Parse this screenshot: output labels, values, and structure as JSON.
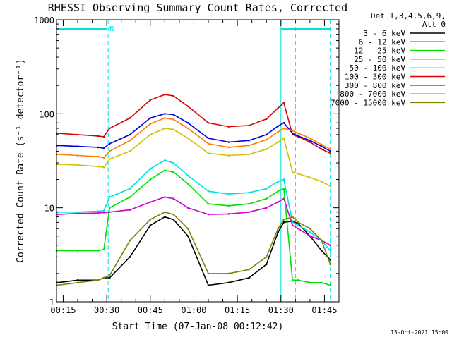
{
  "chart_data": {
    "type": "line",
    "title": "RHESSI Observing Summary Count Rates, Corrected",
    "xlabel": "Start Time (07-Jan-08 00:12:42)",
    "ylabel": "Corrected Count Rate (s⁻¹ detector⁻¹)",
    "yscale": "log",
    "ylim": [
      1,
      1000
    ],
    "xlim_minutes": [
      12.7,
      110
    ],
    "x_tick_labels": [
      "00:15",
      "00:30",
      "00:45",
      "01:00",
      "01:15",
      "01:30",
      "01:45"
    ],
    "x_tick_minutes": [
      15,
      30,
      45,
      60,
      75,
      90,
      105
    ],
    "y_tick_labels": [
      "1",
      "10",
      "100",
      "1000"
    ],
    "y_tick_values": [
      1,
      10,
      100,
      1000
    ],
    "legend_header": [
      "Det 1,3,4,5,6,9,",
      "Att 0"
    ],
    "legend_placement": "right",
    "footer_date": "13-Oct-2021 15:00",
    "night_marker_label": "N",
    "annotations": {
      "night_line_1": {
        "x_minutes": [
          13,
          30
        ]
      },
      "night_line_2": {
        "x_minutes": [
          90,
          107
        ]
      },
      "dashed_markers_minutes": [
        30.5,
        90,
        95,
        107
      ]
    },
    "sample_minutes": [
      13,
      20,
      27,
      29,
      31,
      38,
      45,
      50,
      53,
      58,
      65,
      72,
      79,
      85,
      89,
      91,
      94,
      96,
      100,
      104,
      107
    ],
    "series": [
      {
        "name": "3 - 6 keV",
        "color": "#000000",
        "values": [
          1.6,
          1.7,
          1.7,
          1.8,
          1.8,
          3.0,
          6.5,
          8.0,
          7.5,
          5.0,
          1.5,
          1.6,
          1.8,
          2.5,
          5.5,
          7.0,
          7.2,
          6.8,
          5.0,
          3.5,
          2.8
        ]
      },
      {
        "name": "6 - 12 keV",
        "color": "#d000d0",
        "values": [
          8.5,
          8.7,
          8.8,
          8.9,
          9.0,
          9.5,
          11.5,
          13.0,
          12.5,
          10.0,
          8.5,
          8.6,
          9.0,
          10.0,
          11.5,
          12.5,
          6.5,
          6.0,
          5.0,
          4.5,
          4.0
        ]
      },
      {
        "name": "12 - 25 keV",
        "color": "#00e000",
        "values": [
          3.5,
          3.5,
          3.5,
          3.6,
          10.0,
          13.0,
          20.0,
          25.0,
          24.0,
          18.0,
          11.0,
          10.5,
          11.0,
          12.5,
          15.0,
          16.0,
          1.7,
          1.7,
          1.6,
          1.6,
          1.5
        ]
      },
      {
        "name": "25 - 50 keV",
        "color": "#00e0e0",
        "values": [
          9.0,
          9.0,
          9.2,
          9.3,
          13.0,
          16.0,
          26.0,
          32.0,
          30.0,
          22.0,
          15.0,
          14.0,
          14.5,
          16.0,
          19.0,
          20.0,
          7.0,
          6.5,
          5.5,
          4.5,
          3.5
        ]
      },
      {
        "name": "50 - 100 keV",
        "color": "#d0c000",
        "values": [
          29.0,
          28.5,
          27.5,
          27.0,
          33.0,
          40.0,
          60.0,
          70.0,
          68.0,
          55.0,
          38.0,
          36.0,
          37.0,
          42.0,
          50.0,
          55.0,
          24.0,
          23.0,
          21.0,
          19.0,
          17.0
        ]
      },
      {
        "name": "100 - 300 keV",
        "color": "#e00000",
        "values": [
          62.0,
          60.0,
          58.0,
          57.0,
          70.0,
          90.0,
          140.0,
          160.0,
          155.0,
          120.0,
          80.0,
          73.0,
          75.0,
          88.0,
          115.0,
          130.0,
          60.0,
          57.0,
          50.0,
          42.0,
          38.0
        ]
      },
      {
        "name": "300 - 800 keV",
        "color": "#0000e0",
        "values": [
          46.0,
          45.0,
          44.0,
          43.0,
          48.0,
          60.0,
          90.0,
          100.0,
          98.0,
          80.0,
          55.0,
          50.0,
          52.0,
          60.0,
          74.0,
          80.0,
          62.0,
          58.0,
          52.0,
          45.0,
          40.0
        ]
      },
      {
        "name": "800 - 7000 keV",
        "color": "#ff8000",
        "values": [
          37.0,
          36.0,
          35.0,
          34.0,
          40.0,
          52.0,
          78.0,
          90.0,
          87.0,
          70.0,
          48.0,
          44.0,
          46.0,
          53.0,
          64.0,
          70.0,
          66.0,
          62.0,
          55.0,
          47.0,
          42.0
        ]
      },
      {
        "name": "7000 - 15000 keV",
        "color": "#808000",
        "values": [
          1.5,
          1.6,
          1.7,
          1.8,
          1.9,
          4.5,
          7.5,
          9.0,
          8.5,
          6.0,
          2.0,
          2.0,
          2.2,
          3.0,
          6.0,
          7.5,
          8.0,
          7.0,
          6.0,
          4.5,
          2.5
        ]
      }
    ]
  }
}
